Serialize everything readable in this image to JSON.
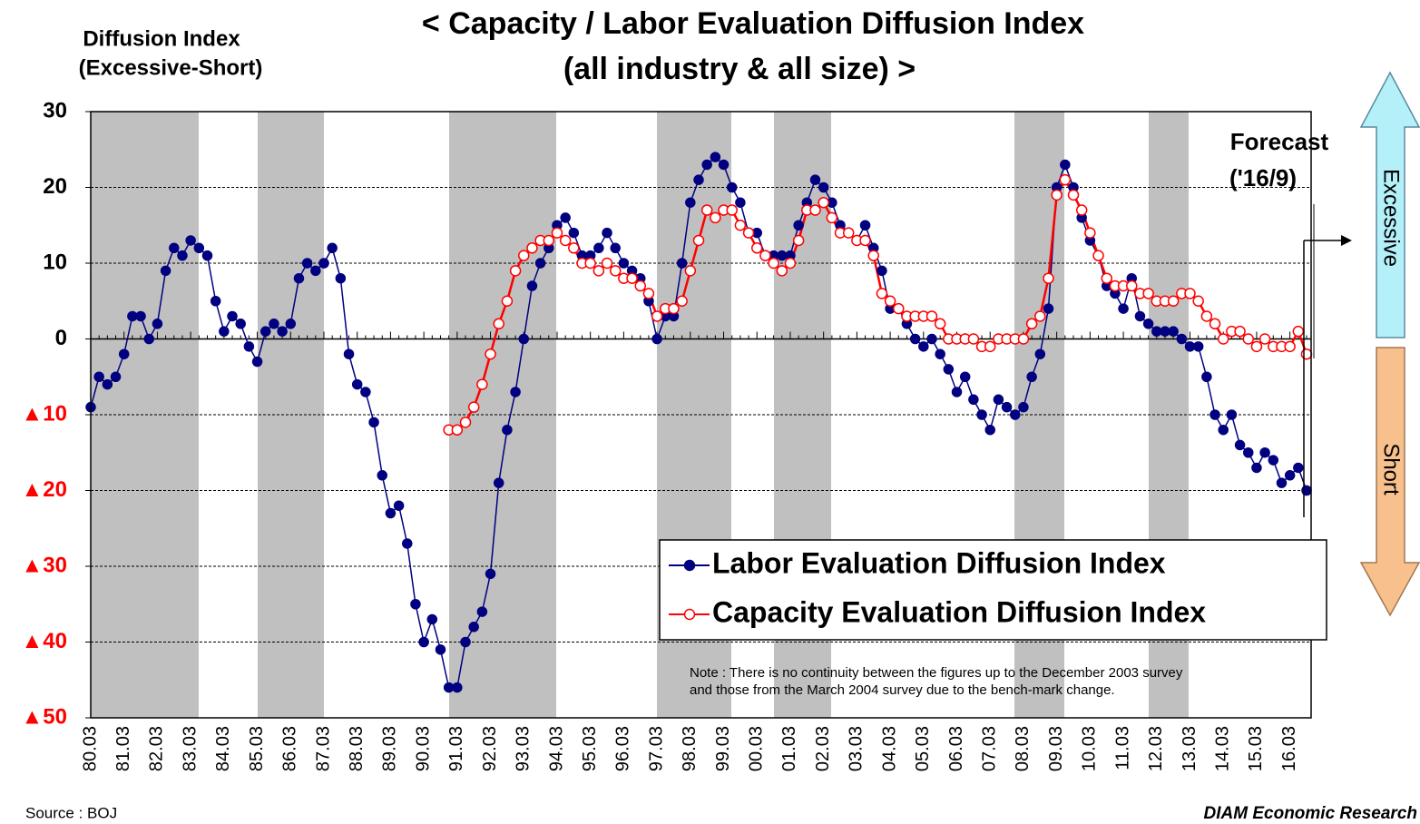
{
  "chart_data": {
    "type": "line",
    "title": "< Capacity / Labor Evaluation Diffusion Index",
    "subtitle": "(all industry & all size) >",
    "ylabel": [
      "Diffusion Index",
      "(Excessive-Short)"
    ],
    "categories": [
      "80.03",
      null,
      null,
      null,
      "81.03",
      null,
      null,
      null,
      "82.03",
      null,
      null,
      null,
      "83.03",
      null,
      null,
      null,
      "84.03",
      null,
      null,
      null,
      "85.03",
      null,
      null,
      null,
      "86.03",
      null,
      null,
      null,
      "87.03",
      null,
      null,
      null,
      "88.03",
      null,
      null,
      null,
      "89.03",
      null,
      null,
      null,
      "90.03",
      null,
      null,
      null,
      "91.03",
      null,
      null,
      null,
      "92.03",
      null,
      null,
      null,
      "93.03",
      null,
      null,
      null,
      "94.03",
      null,
      null,
      null,
      "95.03",
      null,
      null,
      null,
      "96.03",
      null,
      null,
      null,
      "97.03",
      null,
      null,
      null,
      "98.03",
      null,
      null,
      null,
      "99.03",
      null,
      null,
      null,
      "00.03",
      null,
      null,
      null,
      "01.03",
      null,
      null,
      null,
      "02.03",
      null,
      null,
      null,
      "03.03",
      null,
      null,
      null,
      "04.03",
      null,
      null,
      null,
      "05.03",
      null,
      null,
      null,
      "06.03",
      null,
      null,
      null,
      "07.03",
      null,
      null,
      null,
      "08.03",
      null,
      null,
      null,
      "09.03",
      null,
      null,
      null,
      "10.03",
      null,
      null,
      null,
      "11.03",
      null,
      null,
      null,
      "12.03",
      null,
      null,
      null,
      "13.03",
      null,
      null,
      null,
      "14.03",
      null,
      null,
      null,
      "15.03",
      null,
      null,
      null,
      "16.03",
      null,
      null
    ],
    "series": [
      {
        "name": "Labor Evaluation Diffusion Index",
        "color": "#000080",
        "marker": "filled",
        "values": [
          -9,
          -5,
          -6,
          -5,
          -2,
          3,
          3,
          0,
          2,
          9,
          12,
          11,
          13,
          12,
          11,
          5,
          1,
          3,
          2,
          -1,
          -3,
          1,
          2,
          1,
          2,
          8,
          10,
          9,
          10,
          12,
          8,
          -2,
          -6,
          -7,
          -11,
          -18,
          -23,
          -22,
          -27,
          -35,
          -40,
          -37,
          -41,
          -46,
          -46,
          -40,
          -38,
          -36,
          -31,
          -19,
          -12,
          -7,
          0,
          7,
          10,
          12,
          15,
          16,
          14,
          11,
          11,
          12,
          14,
          12,
          10,
          9,
          8,
          5,
          0,
          3,
          3,
          10,
          18,
          21,
          23,
          24,
          23,
          20,
          18,
          14,
          14,
          11,
          11,
          11,
          11,
          15,
          18,
          21,
          20,
          18,
          15,
          14,
          13,
          15,
          12,
          9,
          4,
          4,
          2,
          0,
          -1,
          0,
          -2,
          -4,
          -7,
          -5,
          -8,
          -10,
          -12,
          -8,
          -9,
          -10,
          -9,
          -5,
          -2,
          4,
          20,
          23,
          20,
          16,
          13,
          11,
          7,
          6,
          4,
          8,
          3,
          2,
          1,
          1,
          1,
          0,
          -1,
          -1,
          -5,
          -10,
          -12,
          -10,
          -14,
          -15,
          -17,
          -15,
          -16,
          -19,
          -18,
          -17,
          -20
        ]
      },
      {
        "name": "Capacity Evaluation Diffusion Index",
        "color": "#ff0000",
        "marker": "open",
        "values": [
          null,
          null,
          null,
          null,
          null,
          null,
          null,
          null,
          null,
          null,
          null,
          null,
          null,
          null,
          null,
          null,
          null,
          null,
          null,
          null,
          null,
          null,
          null,
          null,
          null,
          null,
          null,
          null,
          null,
          null,
          null,
          null,
          null,
          null,
          null,
          null,
          null,
          null,
          null,
          null,
          null,
          null,
          null,
          -12,
          -12,
          -11,
          -9,
          -6,
          -2,
          2,
          5,
          9,
          11,
          12,
          13,
          13,
          14,
          13,
          12,
          10,
          10,
          9,
          10,
          9,
          8,
          8,
          7,
          6,
          3,
          4,
          4,
          5,
          9,
          13,
          17,
          16,
          17,
          17,
          15,
          14,
          12,
          11,
          10,
          9,
          10,
          13,
          17,
          17,
          18,
          16,
          14,
          14,
          13,
          13,
          11,
          6,
          5,
          4,
          3,
          3,
          3,
          3,
          2,
          0,
          0,
          0,
          0,
          -1,
          -1,
          0,
          0,
          0,
          0,
          2,
          3,
          8,
          19,
          21,
          19,
          17,
          14,
          11,
          8,
          7,
          7,
          7,
          6,
          6,
          5,
          5,
          5,
          6,
          6,
          5,
          3,
          2,
          0,
          1,
          1,
          0,
          -1,
          0,
          -1,
          -1,
          -1,
          1,
          -2
        ]
      }
    ],
    "ylim": [
      -50,
      30
    ],
    "yticks": [
      {
        "value": -50,
        "label": "▲50"
      },
      {
        "value": -40,
        "label": "▲40"
      },
      {
        "value": -30,
        "label": "▲30"
      },
      {
        "value": -20,
        "label": "▲20"
      },
      {
        "value": -10,
        "label": "▲10"
      },
      0,
      10,
      20,
      30
    ],
    "grid": true,
    "legend": "lower right",
    "annotations": {
      "forecast": [
        "Forecast",
        "('16/9)"
      ],
      "note": [
        "Note : There is no continuity between the figures up to the  December 2003 survey",
        "and those from the March 2004 survey due to the bench-mark change."
      ],
      "excessive": "Excessive",
      "short": "Short",
      "source": "Source : BOJ",
      "credit": "DIAM Economic Research"
    }
  }
}
